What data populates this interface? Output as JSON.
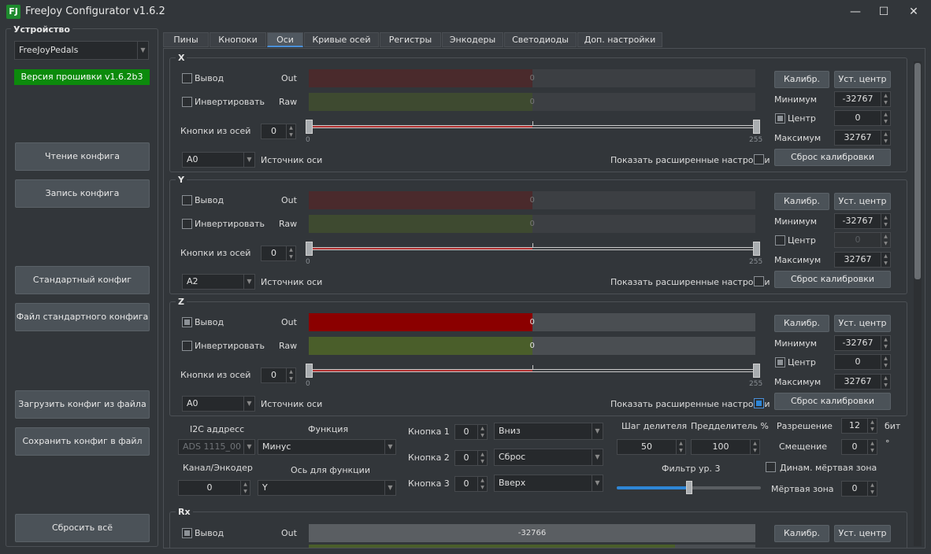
{
  "window": {
    "title": "FreeJoy Configurator v1.6.2",
    "icon_text": "FJ",
    "minimize": "—",
    "maximize": "☐",
    "close": "✕"
  },
  "left": {
    "group_title": "Устройство",
    "device": "FreeJoyPedals",
    "firmware": "Версия прошивки v1.6.2b3",
    "buttons": {
      "read": "Чтение конфига",
      "write": "Запись конфига",
      "default": "Стандартный конфиг",
      "default_file": "Файл стандартного конфига",
      "load": "Загрузить конфиг из файла",
      "save": "Сохранить конфиг в файл",
      "reset": "Сбросить всё"
    }
  },
  "tabs": [
    "Пины",
    "Кнопоки",
    "Оси",
    "Кривые осей",
    "Регистры",
    "Энкодеры",
    "Светодиоды",
    "Доп. настройки"
  ],
  "active_tab": "Оси",
  "labels": {
    "output": "Вывод",
    "invert": "Инвертировать",
    "out": "Out",
    "raw": "Raw",
    "buttons_from_axes": "Кнопки из осей",
    "axis_source": "Источник оси",
    "show_advanced": "Показать расширенные настройки",
    "calib": "Калибр.",
    "set_center": "Уст. центр",
    "minimum": "Минимум",
    "center": "Центр",
    "maximum": "Максимум",
    "reset_calib": "Сброс калибровки",
    "slider_min": "0",
    "slider_max": "255"
  },
  "axes": [
    {
      "name": "X",
      "output_checked": false,
      "invert_checked": false,
      "out_value": "0",
      "raw_value": "0",
      "out_fill": 0.5,
      "raw_fill": 0.5,
      "dim": true,
      "buttons": "0",
      "source": "A0",
      "advanced_checked": false,
      "min": "-32767",
      "center_checked": true,
      "center": "0",
      "center_disabled": false,
      "max": "32767"
    },
    {
      "name": "Y",
      "output_checked": false,
      "invert_checked": false,
      "out_value": "0",
      "raw_value": "0",
      "out_fill": 0.5,
      "raw_fill": 0.5,
      "dim": true,
      "buttons": "0",
      "source": "A2",
      "advanced_checked": false,
      "min": "-32767",
      "center_checked": false,
      "center": "0",
      "center_disabled": true,
      "max": "32767"
    },
    {
      "name": "Z",
      "output_checked": true,
      "invert_checked": false,
      "out_value": "0",
      "raw_value": "0",
      "out_fill": 0.5,
      "raw_fill": 0.5,
      "dim": false,
      "buttons": "0",
      "source": "A0",
      "advanced_checked": true,
      "min": "-32767",
      "center_checked": true,
      "center": "0",
      "center_disabled": false,
      "max": "32767"
    }
  ],
  "advanced": {
    "i2c_label": "I2C аддресс",
    "i2c_value": "ADS 1115_00",
    "function_label": "Функция",
    "function_value": "Минус",
    "channel_label": "Канал/Энкодер",
    "channel_value": "0",
    "axis_func_label": "Ось для функции",
    "axis_func_value": "Y",
    "btn1_label": "Кнопка 1",
    "btn1_value": "0",
    "btn1_action": "Вниз",
    "btn2_label": "Кнопка 2",
    "btn2_value": "0",
    "btn2_action": "Сброс",
    "btn3_label": "Кнопка 3",
    "btn3_value": "0",
    "btn3_action": "Вверх",
    "step_label": "Шаг делителя",
    "step_value": "50",
    "prescaler_label": "Предделитель %",
    "prescaler_value": "100",
    "filter_label": "Фильтр ур. 3",
    "filter_level": 0.5,
    "resolution_label": "Разрешение",
    "resolution_value": "12",
    "resolution_unit": "бит",
    "offset_label": "Смещение",
    "offset_value": "0",
    "offset_unit": "°",
    "dyn_dz_label": "Динам. мёртвая зона",
    "deadzone_label": "Мёртвая зона",
    "deadzone_value": "0"
  },
  "rx": {
    "name": "Rx",
    "output_checked": true,
    "out_value": "-32766"
  },
  "colors": {
    "red_fill": "#8b0000",
    "green_fill": "#4a5e2a",
    "red_dim": "#4a2a2c",
    "green_dim": "#3e4a30"
  }
}
